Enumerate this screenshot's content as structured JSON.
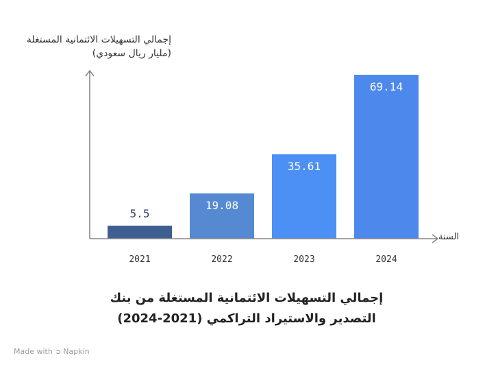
{
  "chart_data": {
    "type": "bar",
    "title_line1": "إجمالي التسهيلات الائتمانية المستغلة من بنك",
    "title_line2": "التصدير والاستيراد التراكمي (2021-2024)",
    "ylabel_line1": "إجمالي التسهيلات الائتمانية المستغلة",
    "ylabel_line2": "(مليار ريال سعودي)",
    "xlabel": "السنة",
    "categories": [
      "2021",
      "2022",
      "2023",
      "2024"
    ],
    "values": [
      5.5,
      19.08,
      35.61,
      69.14
    ],
    "value_labels": [
      "5.5",
      "19.08",
      "35.61",
      "69.14"
    ],
    "bar_colors": [
      "#3f5f91",
      "#5589d1",
      "#4c8ff5",
      "#4d89ec"
    ],
    "value_label_colors": [
      "#2b4068",
      "#ffffff",
      "#ffffff",
      "#ffffff"
    ],
    "ylim": [
      0,
      72
    ]
  },
  "footer": {
    "made_with": "Made with",
    "brand": "Napkin"
  }
}
